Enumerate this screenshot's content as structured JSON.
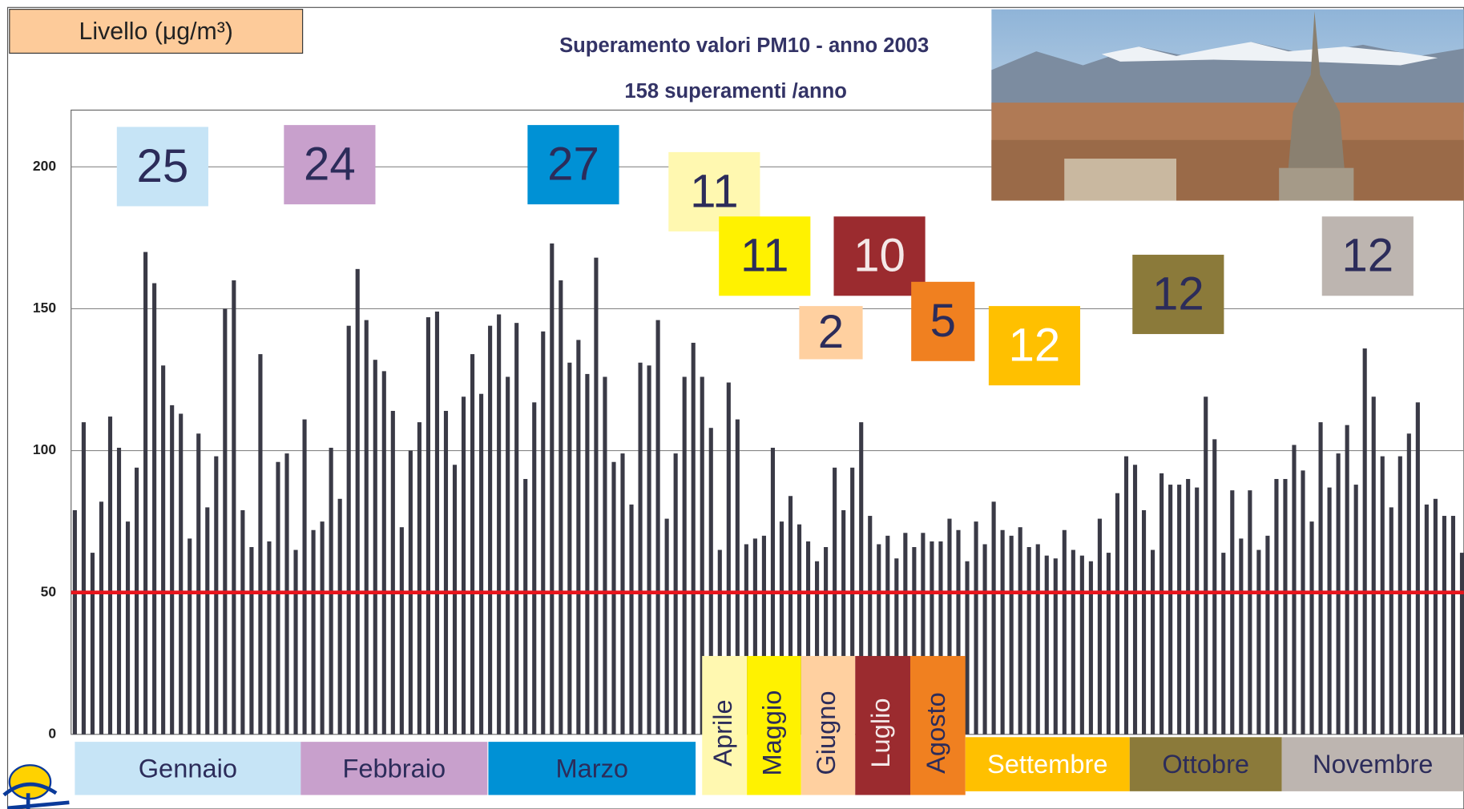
{
  "chart_data": {
    "type": "bar",
    "header": "Livello (μg/m³)",
    "title": "Superamento valori PM10 - anno 2003",
    "subtitle": "158 superamenti /anno",
    "values": [
      79,
      110,
      64,
      82,
      112,
      101,
      75,
      94,
      170,
      159,
      130,
      116,
      113,
      69,
      106,
      80,
      98,
      150,
      160,
      79,
      66,
      134,
      68,
      96,
      99,
      65,
      111,
      72,
      75,
      101,
      83,
      144,
      164,
      146,
      132,
      128,
      114,
      73,
      100,
      110,
      147,
      149,
      114,
      95,
      119,
      134,
      120,
      144,
      148,
      126,
      145,
      90,
      117,
      142,
      173,
      160,
      131,
      139,
      127,
      168,
      126,
      96,
      99,
      81,
      131,
      130,
      146,
      76,
      99,
      126,
      138,
      126,
      108,
      65,
      124,
      111,
      67,
      69,
      70,
      101,
      75,
      84,
      74,
      68,
      61,
      66,
      94,
      79,
      94,
      110,
      77,
      67,
      70,
      62,
      71,
      66,
      71,
      68,
      68,
      76,
      72,
      61,
      75,
      67,
      82,
      72,
      70,
      73,
      66,
      67,
      63,
      62,
      72,
      65,
      63,
      61,
      76,
      64,
      85,
      98,
      95,
      79,
      65,
      92,
      88,
      88,
      90,
      87,
      119,
      104,
      64,
      86,
      69,
      86,
      65,
      70,
      90,
      90,
      102,
      93,
      75,
      110,
      87,
      99,
      109,
      88,
      136,
      119,
      98,
      80,
      98,
      106,
      117,
      81,
      83,
      77,
      77,
      64
    ],
    "color": "#3a3a46",
    "ylim": [
      0,
      220
    ],
    "yticks": [
      0,
      50,
      100,
      150,
      200
    ],
    "grid": true,
    "limit_line": {
      "value": 50,
      "color": "#e8141c"
    },
    "months": [
      {
        "name": "Gennaio",
        "count": 25,
        "color": "#c6e4f6",
        "text_color": "#2c2c5a"
      },
      {
        "name": "Febbraio",
        "count": 24,
        "color": "#c8a0cc",
        "text_color": "#2c2c5a"
      },
      {
        "name": "Marzo",
        "count": 27,
        "color": "#0091d5",
        "text_color": "#2c2c5a"
      },
      {
        "name": "Aprile",
        "count": 11,
        "color": "#fff8b0",
        "text_color": "#2c2c5a"
      },
      {
        "name": "Maggio",
        "count": 11,
        "color": "#fff200",
        "text_color": "#2c2c5a"
      },
      {
        "name": "Giugno",
        "count": 2,
        "color": "#ffd0a0",
        "text_color": "#2c2c5a"
      },
      {
        "name": "Luglio",
        "count": 10,
        "color": "#9b2b2f",
        "text_color": "#f4e8e8"
      },
      {
        "name": "Agosto",
        "count": 5,
        "color": "#f08020",
        "text_color": "#2c2c5a"
      },
      {
        "name": "Settembre",
        "count": 12,
        "color": "#ffc000",
        "text_color": "#ffffff"
      },
      {
        "name": "Ottobre",
        "count": 12,
        "color": "#8b7a3a",
        "text_color": "#2c2c5a"
      },
      {
        "name": "Novembre",
        "count": 12,
        "color": "#bdb5b0",
        "text_color": "#2c2c5a"
      }
    ]
  }
}
